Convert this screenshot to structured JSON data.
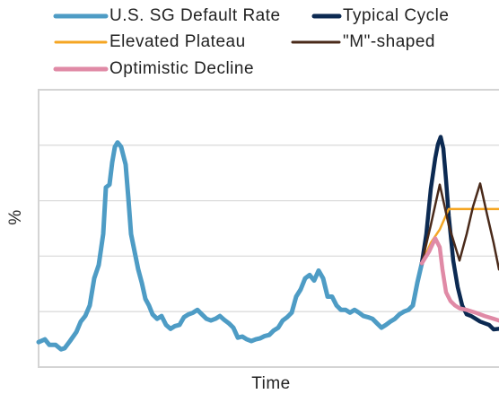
{
  "chart_data": {
    "type": "line",
    "ylabel": "%",
    "xlabel": "Time",
    "xlim": [
      0,
      513
    ],
    "ylim": [
      0,
      5
    ],
    "yticks": [
      1,
      2,
      3,
      4
    ],
    "grid": true,
    "legend": "top",
    "series": [
      {
        "name": "U.S. SG Default Rate",
        "color": "#4e9cc5",
        "x": [
          0,
          7,
          12,
          19,
          25,
          29,
          35,
          42,
          47,
          52,
          57,
          62,
          67,
          72,
          75,
          79,
          82,
          85,
          88,
          92,
          97,
          100,
          103,
          107,
          111,
          115,
          119,
          123,
          127,
          132,
          137,
          142,
          147,
          152,
          157,
          162,
          167,
          172,
          177,
          182,
          187,
          192,
          197,
          202,
          207,
          212,
          217,
          222,
          227,
          232,
          237,
          242,
          247,
          252,
          257,
          262,
          267,
          272,
          277,
          282,
          287,
          292,
          297,
          302,
          307,
          312,
          317,
          322,
          327,
          332,
          337,
          342,
          347,
          352,
          357,
          362,
          367,
          372,
          377,
          382,
          387,
          392,
          397,
          402,
          407,
          412,
          417,
          422,
          427
        ],
        "values": [
          0.45,
          0.5,
          0.4,
          0.4,
          0.32,
          0.34,
          0.47,
          0.63,
          0.82,
          0.92,
          1.11,
          1.6,
          1.84,
          2.4,
          3.24,
          3.29,
          3.69,
          3.97,
          4.05,
          3.97,
          3.65,
          3.05,
          2.4,
          2.08,
          1.76,
          1.52,
          1.23,
          1.11,
          0.95,
          0.87,
          0.92,
          0.76,
          0.69,
          0.74,
          0.76,
          0.9,
          0.95,
          0.98,
          1.03,
          0.95,
          0.87,
          0.84,
          0.87,
          0.92,
          0.85,
          0.79,
          0.71,
          0.53,
          0.55,
          0.5,
          0.47,
          0.5,
          0.52,
          0.56,
          0.58,
          0.66,
          0.71,
          0.84,
          0.9,
          0.98,
          1.27,
          1.4,
          1.6,
          1.66,
          1.56,
          1.74,
          1.6,
          1.27,
          1.27,
          1.11,
          1.03,
          1.03,
          0.98,
          1.03,
          0.98,
          0.92,
          0.9,
          0.87,
          0.79,
          0.71,
          0.76,
          0.82,
          0.87,
          0.95,
          1.0,
          1.03,
          1.11,
          1.52,
          1.87
        ]
      },
      {
        "name": "Typical Cycle",
        "color": "#0c2a52",
        "x": [
          427,
          432,
          437,
          442,
          445,
          448,
          451,
          454,
          457,
          462,
          467,
          472,
          477,
          482,
          487,
          492,
          497,
          502,
          507,
          513
        ],
        "values": [
          1.87,
          2.4,
          3.21,
          3.77,
          4.02,
          4.15,
          3.94,
          3.37,
          2.73,
          1.92,
          1.44,
          1.11,
          0.95,
          0.92,
          0.87,
          0.82,
          0.79,
          0.76,
          0.68,
          0.69
        ]
      },
      {
        "name": "Elevated Plateau",
        "color": "#f5a623",
        "x": [
          427,
          437,
          447,
          457,
          467,
          513
        ],
        "values": [
          1.87,
          2.24,
          2.48,
          2.85,
          2.85,
          2.85
        ]
      },
      {
        "name": "\"M\"-shaped",
        "color": "#4a2a1a",
        "x": [
          427,
          437,
          447,
          457,
          469,
          477,
          484,
          492,
          500,
          507,
          513
        ],
        "values": [
          1.87,
          2.56,
          3.29,
          2.56,
          1.92,
          2.4,
          2.89,
          3.31,
          2.73,
          2.24,
          1.76
        ]
      },
      {
        "name": "Optimistic Decline",
        "color": "#e08aa6",
        "x": [
          427,
          435,
          442,
          447,
          450,
          454,
          459,
          464,
          469,
          477,
          487,
          497,
          507,
          513
        ],
        "values": [
          1.87,
          2.08,
          2.32,
          2.16,
          1.76,
          1.35,
          1.19,
          1.11,
          1.06,
          1.03,
          0.98,
          0.92,
          0.87,
          0.84
        ]
      }
    ]
  }
}
